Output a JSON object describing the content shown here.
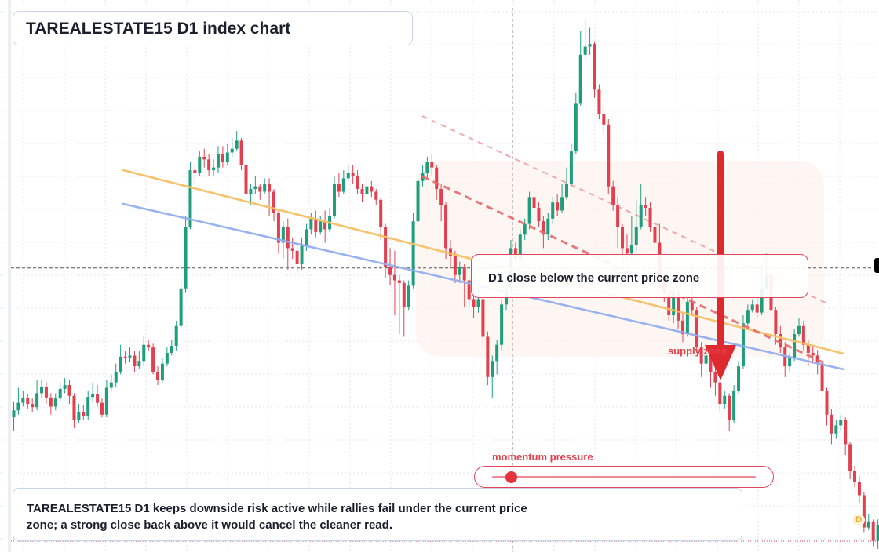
{
  "title": "TAREALESTATE15 D1 index chart",
  "zone_label": "D1 close below the current price zone",
  "note": "TAREALESTATE15 D1 keeps downside risk active while rallies fail under the current price zone; a strong close back above it would cancel the cleaner read.",
  "momentum_label": "momentum pressure",
  "momentum_level": 0.07,
  "supply_label": "supply zone",
  "badge": "D",
  "colors": {
    "up": "#1f9e7d",
    "down": "#e2404f",
    "trend_orange": "#f6c065",
    "trend_blue": "#93aef0",
    "channel": "#e56a6e",
    "arrow": "#de2a2f",
    "zone_fill": "#fdf3ed",
    "grid": "#e5e7ea"
  },
  "chart_data": {
    "type": "candlestick",
    "title": "TAREALESTATE15 D1 index chart",
    "xlabel": "",
    "ylabel": "",
    "timeframe": "D1",
    "ylim": [
      0,
      100
    ],
    "grid": true,
    "legend": "none",
    "current_price": 52.3,
    "note": "no price scale is printed; values are relative to the visible vertical range (0 = bottom, 100 = top)",
    "candles": [
      [
        24.5,
        25.8,
        27.5,
        22.0
      ],
      [
        25.8,
        27.2,
        30.0,
        25.0
      ],
      [
        27.2,
        28.1,
        29.5,
        26.5
      ],
      [
        28.1,
        27.0,
        28.8,
        26.0
      ],
      [
        27.0,
        26.4,
        28.0,
        25.5
      ],
      [
        26.4,
        29.0,
        31.5,
        25.8
      ],
      [
        29.0,
        30.2,
        31.5,
        28.0
      ],
      [
        30.2,
        28.2,
        31.0,
        27.0
      ],
      [
        28.2,
        26.5,
        29.0,
        25.0
      ],
      [
        26.5,
        28.0,
        29.0,
        25.8
      ],
      [
        28.0,
        29.8,
        31.0,
        27.5
      ],
      [
        29.8,
        30.5,
        31.8,
        29.0
      ],
      [
        30.5,
        28.5,
        31.5,
        27.0
      ],
      [
        28.5,
        24.0,
        29.0,
        22.5
      ],
      [
        24.0,
        25.5,
        27.0,
        23.5
      ],
      [
        25.5,
        24.8,
        26.8,
        24.0
      ],
      [
        24.8,
        28.3,
        29.5,
        24.0
      ],
      [
        28.3,
        28.9,
        31.0,
        27.5
      ],
      [
        28.9,
        27.2,
        30.5,
        26.5
      ],
      [
        27.2,
        25.0,
        28.0,
        24.5
      ],
      [
        25.0,
        30.0,
        31.5,
        24.5
      ],
      [
        30.0,
        31.0,
        32.5,
        29.5
      ],
      [
        31.0,
        33.0,
        34.5,
        30.2
      ],
      [
        33.0,
        35.8,
        38.0,
        32.5
      ],
      [
        35.8,
        35.5,
        36.8,
        34.5
      ],
      [
        35.5,
        36.0,
        37.5,
        34.8
      ],
      [
        36.0,
        34.0,
        36.8,
        33.0
      ],
      [
        34.0,
        35.0,
        36.8,
        33.5
      ],
      [
        35.0,
        38.0,
        39.5,
        34.0
      ],
      [
        38.0,
        37.5,
        39.0,
        36.8
      ],
      [
        37.5,
        33.0,
        38.2,
        32.5
      ],
      [
        33.0,
        31.5,
        34.0,
        30.5
      ],
      [
        31.5,
        34.5,
        35.5,
        31.0
      ],
      [
        34.5,
        36.5,
        37.5,
        34.0
      ],
      [
        36.5,
        37.8,
        39.0,
        36.0
      ],
      [
        37.8,
        41.5,
        42.5,
        36.8
      ],
      [
        41.5,
        48.5,
        50.0,
        40.8
      ],
      [
        48.5,
        60.0,
        62.0,
        47.8
      ],
      [
        60.0,
        70.5,
        72.0,
        59.5
      ],
      [
        70.5,
        70.0,
        71.5,
        68.0
      ],
      [
        70.0,
        73.0,
        74.0,
        69.5
      ],
      [
        73.0,
        72.5,
        74.5,
        71.0
      ],
      [
        72.5,
        70.5,
        73.5,
        69.5
      ],
      [
        70.5,
        71.0,
        72.5,
        69.5
      ],
      [
        71.0,
        73.5,
        75.0,
        70.0
      ],
      [
        73.5,
        72.0,
        75.0,
        71.0
      ],
      [
        72.0,
        73.8,
        75.5,
        71.5
      ],
      [
        73.8,
        74.5,
        76.5,
        73.0
      ],
      [
        74.5,
        76.0,
        77.8,
        74.0
      ],
      [
        76.0,
        71.5,
        76.5,
        70.5
      ],
      [
        71.5,
        66.0,
        72.0,
        65.0
      ],
      [
        66.0,
        67.0,
        68.0,
        64.0
      ],
      [
        67.0,
        67.5,
        69.5,
        66.0
      ],
      [
        67.5,
        66.5,
        68.0,
        65.0
      ],
      [
        66.5,
        68.0,
        69.0,
        66.0
      ],
      [
        68.0,
        66.5,
        69.0,
        62.0
      ],
      [
        66.5,
        62.5,
        67.0,
        61.0
      ],
      [
        62.5,
        57.0,
        63.0,
        55.0
      ],
      [
        57.0,
        60.0,
        61.0,
        54.0
      ],
      [
        60.0,
        56.0,
        61.5,
        52.0
      ],
      [
        56.0,
        55.5,
        58.0,
        54.0
      ],
      [
        55.5,
        53.0,
        56.5,
        51.0
      ],
      [
        53.0,
        56.5,
        58.0,
        52.0
      ],
      [
        56.5,
        59.5,
        60.5,
        55.5
      ],
      [
        59.5,
        61.5,
        62.5,
        58.5
      ],
      [
        61.5,
        59.0,
        63.0,
        58.0
      ],
      [
        59.0,
        61.0,
        62.0,
        58.5
      ],
      [
        61.0,
        59.5,
        63.0,
        57.0
      ],
      [
        59.5,
        62.0,
        63.5,
        59.0
      ],
      [
        62.0,
        68.0,
        69.5,
        61.5
      ],
      [
        68.0,
        66.5,
        70.0,
        65.5
      ],
      [
        66.5,
        69.0,
        70.5,
        66.0
      ],
      [
        69.0,
        70.0,
        71.5,
        68.5
      ],
      [
        70.0,
        69.5,
        71.5,
        68.0
      ],
      [
        69.5,
        67.0,
        70.5,
        66.0
      ],
      [
        67.0,
        66.0,
        68.0,
        64.5
      ],
      [
        66.0,
        67.5,
        69.0,
        65.0
      ],
      [
        67.5,
        66.5,
        68.5,
        65.5
      ],
      [
        66.5,
        65.0,
        67.0,
        64.0
      ],
      [
        65.0,
        60.0,
        65.5,
        57.5
      ],
      [
        60.0,
        52.5,
        60.5,
        50.5
      ],
      [
        52.5,
        51.0,
        56.0,
        49.0
      ],
      [
        51.0,
        50.0,
        55.5,
        43.5
      ],
      [
        50.0,
        49.5,
        51.0,
        40.0
      ],
      [
        49.5,
        45.0,
        50.0,
        39.5
      ],
      [
        45.0,
        49.0,
        50.0,
        44.5
      ],
      [
        49.0,
        61.0,
        62.5,
        48.5
      ],
      [
        61.0,
        68.5,
        70.0,
        60.5
      ],
      [
        68.5,
        70.0,
        71.5,
        67.5
      ],
      [
        70.0,
        72.0,
        73.0,
        69.0
      ],
      [
        72.0,
        71.0,
        73.5,
        69.5
      ],
      [
        71.0,
        67.0,
        71.5,
        65.0
      ],
      [
        67.0,
        64.0,
        68.0,
        61.0
      ],
      [
        64.0,
        56.0,
        64.5,
        54.0
      ],
      [
        56.0,
        54.5,
        57.5,
        52.5
      ],
      [
        54.5,
        51.0,
        55.5,
        49.5
      ],
      [
        51.0,
        52.5,
        53.5,
        49.5
      ],
      [
        52.5,
        50.0,
        53.0,
        45.0
      ],
      [
        50.0,
        46.5,
        50.5,
        45.0
      ],
      [
        46.5,
        45.0,
        49.0,
        43.0
      ],
      [
        45.0,
        46.5,
        48.5,
        44.0
      ],
      [
        46.5,
        39.5,
        47.0,
        37.5
      ],
      [
        39.5,
        32.0,
        40.5,
        30.5
      ],
      [
        32.0,
        35.0,
        36.0,
        28.0
      ],
      [
        35.0,
        38.0,
        39.0,
        32.5
      ],
      [
        38.0,
        45.5,
        46.5,
        37.0
      ],
      [
        45.5,
        48.5,
        49.5,
        44.5
      ],
      [
        48.5,
        56.0,
        57.5,
        47.5
      ],
      [
        56.0,
        54.0,
        57.0,
        53.0
      ],
      [
        54.0,
        58.5,
        59.5,
        52.0
      ],
      [
        58.5,
        60.5,
        61.5,
        57.5
      ],
      [
        60.5,
        65.5,
        66.5,
        59.5
      ],
      [
        65.5,
        63.5,
        66.5,
        62.0
      ],
      [
        63.5,
        61.0,
        64.5,
        60.0
      ],
      [
        61.0,
        58.5,
        62.0,
        56.0
      ],
      [
        58.5,
        61.5,
        62.5,
        57.5
      ],
      [
        61.5,
        64.5,
        65.5,
        60.5
      ],
      [
        64.5,
        63.0,
        66.0,
        62.0
      ],
      [
        63.0,
        65.5,
        68.0,
        62.5
      ],
      [
        65.5,
        68.0,
        71.0,
        65.0
      ],
      [
        68.0,
        74.0,
        75.5,
        67.5
      ],
      [
        74.0,
        83.0,
        85.0,
        73.5
      ],
      [
        83.0,
        92.0,
        96.5,
        82.5
      ],
      [
        92.0,
        93.5,
        98.5,
        91.0
      ],
      [
        93.5,
        94.0,
        97.0,
        92.0
      ],
      [
        94.0,
        85.5,
        94.5,
        84.0
      ],
      [
        85.5,
        81.0,
        86.5,
        80.0
      ],
      [
        81.0,
        79.0,
        82.0,
        77.5
      ],
      [
        79.0,
        67.5,
        80.0,
        66.0
      ],
      [
        67.5,
        64.0,
        68.5,
        63.0
      ],
      [
        64.0,
        60.0,
        65.5,
        56.0
      ],
      [
        60.0,
        56.0,
        60.5,
        52.0
      ],
      [
        56.0,
        55.0,
        58.5,
        53.5
      ],
      [
        55.0,
        56.5,
        62.0,
        54.0
      ],
      [
        56.5,
        60.0,
        65.0,
        55.5
      ],
      [
        60.0,
        64.0,
        68.0,
        59.5
      ],
      [
        64.0,
        63.5,
        65.5,
        62.0
      ],
      [
        63.5,
        60.0,
        64.5,
        59.0
      ],
      [
        60.0,
        57.0,
        61.0,
        55.5
      ],
      [
        57.0,
        50.0,
        60.5,
        48.0
      ],
      [
        50.0,
        47.5,
        51.0,
        46.0
      ],
      [
        47.5,
        43.5,
        48.5,
        42.5
      ],
      [
        43.5,
        47.5,
        48.5,
        42.0
      ],
      [
        47.5,
        42.5,
        48.5,
        41.0
      ],
      [
        42.5,
        40.0,
        44.0,
        38.5
      ],
      [
        40.0,
        46.0,
        47.0,
        39.5
      ],
      [
        46.0,
        44.5,
        53.0,
        43.5
      ],
      [
        44.5,
        37.5,
        45.0,
        36.5
      ],
      [
        37.5,
        34.5,
        38.5,
        32.0
      ],
      [
        34.5,
        36.0,
        37.5,
        33.0
      ],
      [
        36.0,
        33.0,
        36.5,
        30.0
      ],
      [
        33.0,
        31.0,
        34.0,
        28.5
      ],
      [
        31.0,
        27.0,
        31.5,
        25.5
      ],
      [
        27.0,
        28.5,
        29.5,
        26.0
      ],
      [
        28.5,
        24.0,
        29.0,
        22.0
      ],
      [
        24.0,
        29.5,
        30.5,
        23.5
      ],
      [
        29.5,
        34.0,
        35.0,
        29.0
      ],
      [
        34.0,
        42.0,
        43.5,
        33.5
      ],
      [
        42.0,
        44.5,
        45.5,
        41.5
      ],
      [
        44.5,
        45.5,
        46.5,
        44.0
      ],
      [
        45.5,
        44.0,
        49.0,
        43.0
      ],
      [
        44.0,
        48.5,
        53.0,
        43.5
      ],
      [
        48.5,
        51.0,
        55.0,
        48.0
      ],
      [
        51.0,
        44.5,
        51.5,
        43.0
      ],
      [
        44.5,
        40.0,
        45.0,
        38.0
      ],
      [
        40.0,
        37.5,
        41.5,
        36.5
      ],
      [
        37.5,
        34.0,
        38.5,
        32.0
      ],
      [
        34.0,
        35.5,
        36.5,
        33.0
      ],
      [
        35.5,
        40.0,
        41.0,
        35.0
      ],
      [
        40.0,
        41.5,
        43.0,
        39.5
      ],
      [
        41.5,
        38.0,
        42.5,
        37.0
      ],
      [
        38.0,
        36.5,
        39.0,
        34.0
      ],
      [
        36.5,
        36.0,
        38.0,
        34.5
      ],
      [
        36.0,
        34.5,
        37.0,
        32.5
      ],
      [
        34.5,
        29.5,
        35.0,
        28.0
      ],
      [
        29.5,
        25.0,
        30.0,
        23.0
      ],
      [
        25.0,
        21.5,
        26.0,
        19.5
      ],
      [
        21.5,
        23.0,
        24.0,
        20.5
      ],
      [
        23.0,
        24.0,
        25.0,
        22.0
      ],
      [
        24.0,
        19.5,
        24.5,
        17.5
      ],
      [
        19.5,
        14.5,
        20.0,
        13.0
      ],
      [
        14.5,
        12.5,
        15.5,
        11.5
      ],
      [
        12.5,
        10.0,
        13.5,
        8.5
      ],
      [
        10.0,
        4.0,
        10.5,
        3.0
      ],
      [
        4.0,
        5.0,
        6.5,
        3.5
      ],
      [
        5.0,
        1.5,
        5.5,
        0.5
      ],
      [
        1.5,
        4.5,
        5.5,
        0.0
      ],
      [
        4.5,
        2.0,
        5.0,
        1.0
      ],
      [
        2.0,
        6.0,
        7.0,
        1.5
      ]
    ]
  }
}
